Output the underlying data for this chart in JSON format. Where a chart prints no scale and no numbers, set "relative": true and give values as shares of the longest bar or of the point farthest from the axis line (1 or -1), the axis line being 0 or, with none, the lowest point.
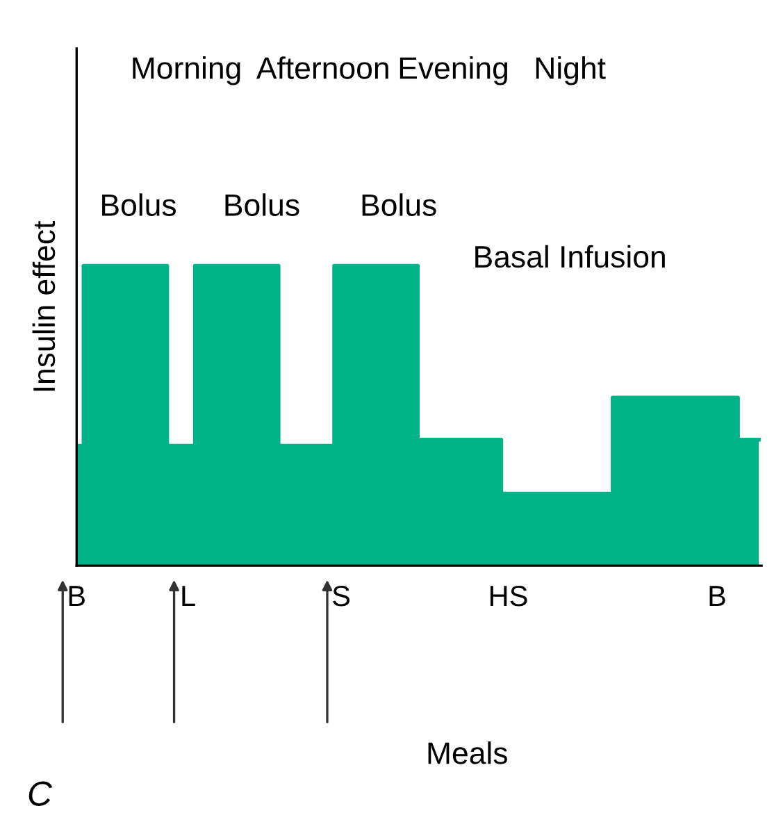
{
  "chart_data": {
    "type": "area",
    "relative": true,
    "ylabel": "Insulin effect",
    "xlabel": "Meals",
    "categories": [
      "B",
      null,
      null,
      null,
      null,
      null,
      null,
      null,
      "L",
      null,
      null,
      null,
      null,
      null,
      null,
      null,
      null,
      null,
      null,
      "S",
      null,
      null,
      null,
      null,
      null,
      null,
      null,
      null,
      null,
      null,
      null,
      "HS",
      null,
      null,
      null,
      null,
      null,
      null,
      null,
      null,
      null,
      null,
      null,
      null,
      null,
      null,
      "B",
      null,
      null,
      null
    ],
    "values": [
      0.4,
      1,
      1,
      1,
      1,
      1,
      1,
      0.4,
      0.4,
      1,
      1,
      1,
      1,
      1,
      1,
      0.4,
      0.4,
      0.4,
      0.4,
      1,
      1,
      1,
      1,
      1,
      1,
      0.42,
      0.42,
      0.42,
      0.42,
      0.42,
      0.42,
      0.24,
      0.24,
      0.24,
      0.24,
      0.24,
      0.24,
      0.24,
      0.24,
      0.56,
      0.56,
      0.56,
      0.56,
      0.56,
      0.56,
      0.56,
      0.56,
      0.56,
      0.42,
      0.42
    ],
    "color": "#00b386",
    "annotations": [
      "Morning",
      "Afternoon",
      "Evening",
      "Night",
      "Bolus",
      "Bolus",
      "Bolus",
      "Basal Infusion",
      "C"
    ],
    "grid": false,
    "legend": false
  }
}
